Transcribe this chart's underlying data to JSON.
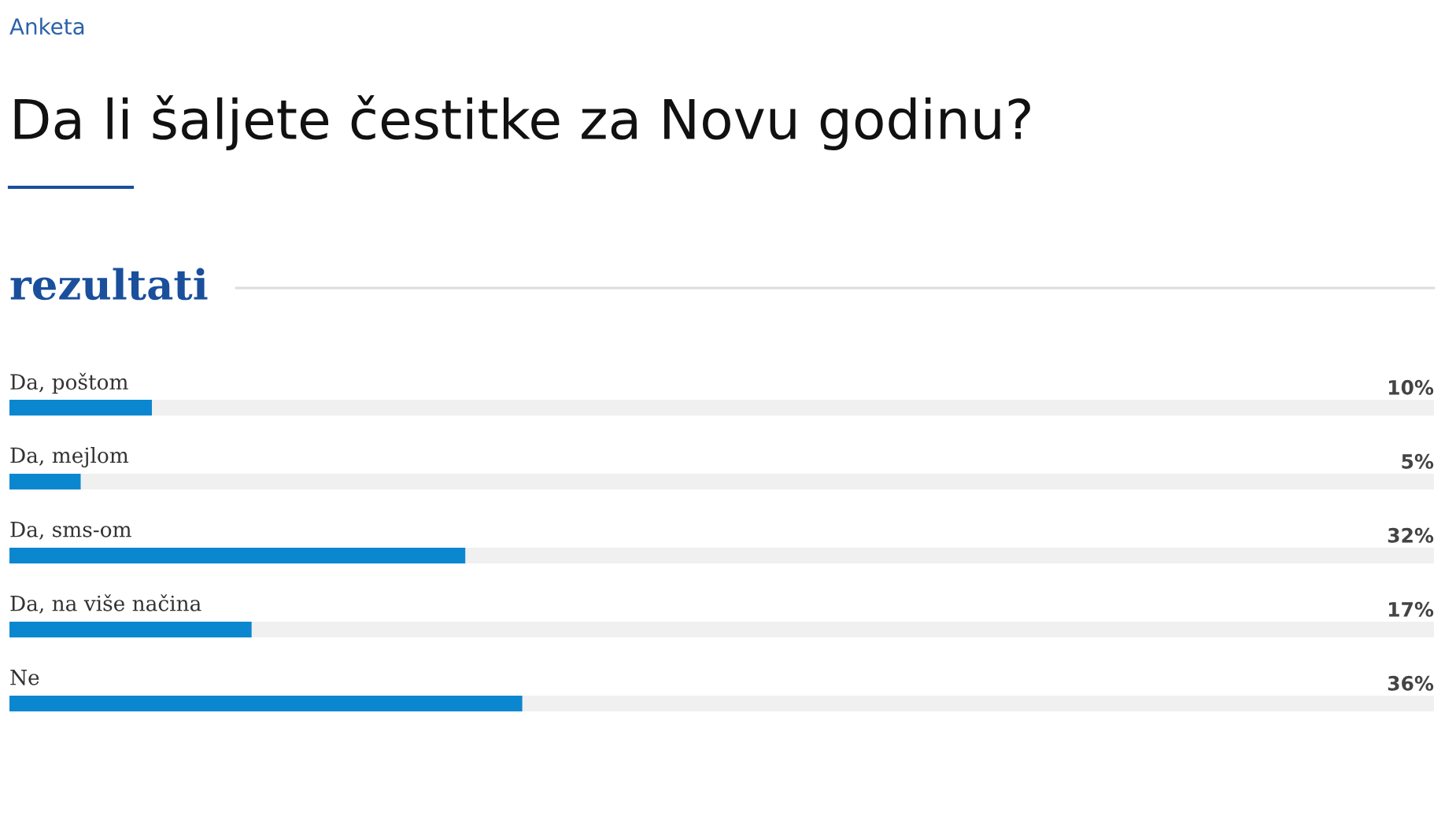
{
  "chart_data": {
    "type": "bar",
    "orientation": "horizontal",
    "title": "Da li šaljete čestitke za Novu godinu?",
    "subtitle": "rezultati",
    "annotations": [
      "Anketa"
    ],
    "categories": [
      "Da, poštom",
      "Da, mejlom",
      "Da, sms-om",
      "Da, na više načina",
      "Ne"
    ],
    "values": [
      10,
      5,
      32,
      17,
      36
    ],
    "value_labels": [
      "10%",
      "5%",
      "32%",
      "17%",
      "36%"
    ],
    "color": "#0b87d0",
    "xlim": [
      0,
      100
    ],
    "legend": false
  }
}
